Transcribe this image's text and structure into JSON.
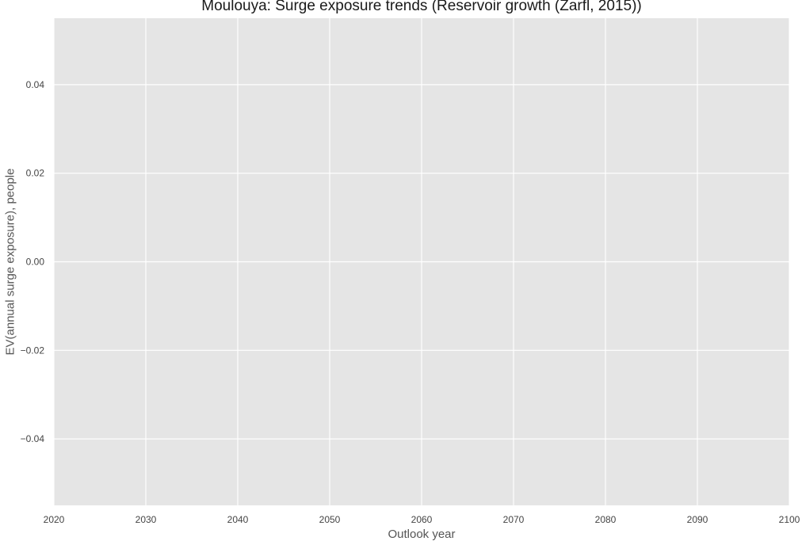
{
  "chart_data": {
    "type": "line",
    "title": "Moulouya: Surge exposure trends (Reservoir growth (Zarfl, 2015))",
    "xlabel": "Outlook year",
    "ylabel": "EV(annual surge exposure), people",
    "xlim": [
      2020,
      2100
    ],
    "ylim": [
      -0.055,
      0.055
    ],
    "x_ticks": [
      2020,
      2030,
      2040,
      2050,
      2060,
      2070,
      2080,
      2090,
      2100
    ],
    "x_tick_labels": [
      "2020",
      "2030",
      "2040",
      "2050",
      "2060",
      "2070",
      "2080",
      "2090",
      "2100"
    ],
    "y_ticks": [
      -0.04,
      -0.02,
      0.0,
      0.02,
      0.04
    ],
    "y_tick_labels": [
      "−0.04",
      "−0.02",
      "0.00",
      "0.02",
      "0.04"
    ],
    "grid": true,
    "series": [],
    "colors": {
      "plot_background": "#e5e5e5",
      "grid": "#ffffff"
    }
  }
}
